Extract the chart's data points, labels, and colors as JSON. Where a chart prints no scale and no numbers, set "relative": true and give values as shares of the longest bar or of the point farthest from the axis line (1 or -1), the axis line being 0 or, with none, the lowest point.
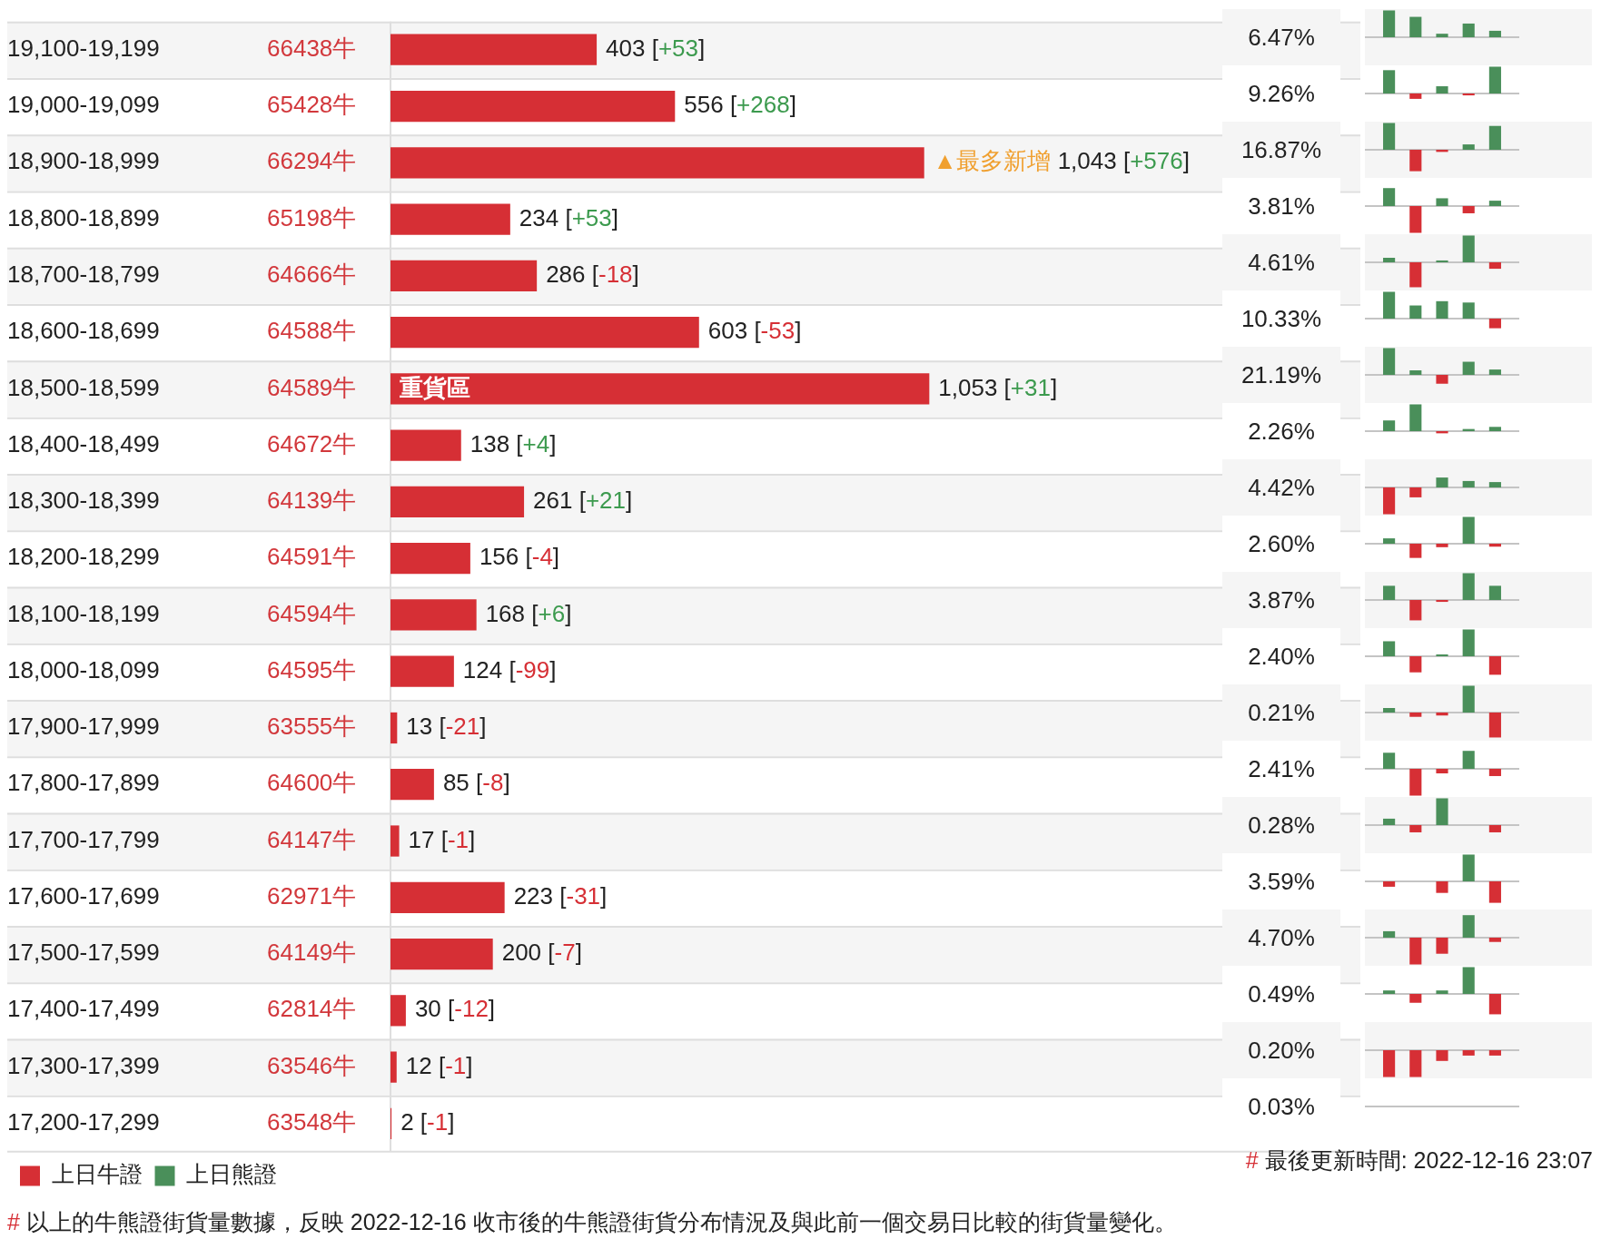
{
  "chart_data": [
    {
      "type": "bar",
      "orientation": "horizontal",
      "categories": [
        "19,100-19,199",
        "19,000-19,099",
        "18,900-18,999",
        "18,800-18,899",
        "18,700-18,799",
        "18,600-18,699",
        "18,500-18,599",
        "18,400-18,499",
        "18,300-18,399",
        "18,200-18,299",
        "18,100-18,199",
        "18,000-18,099",
        "17,900-17,999",
        "17,800-17,899",
        "17,700-17,799",
        "17,600-17,699",
        "17,500-17,599",
        "17,400-17,499",
        "17,300-17,399",
        "17,200-17,299"
      ],
      "y2_categories": [
        "66438牛",
        "65428牛",
        "66294牛",
        "65198牛",
        "64666牛",
        "64588牛",
        "64589牛",
        "64672牛",
        "64139牛",
        "64591牛",
        "64594牛",
        "64595牛",
        "63555牛",
        "64600牛",
        "64147牛",
        "62971牛",
        "64149牛",
        "62814牛",
        "63546牛",
        "63548牛"
      ],
      "series": [
        {
          "name": "上日牛證",
          "color": "#d62f35",
          "values": [
            403,
            556,
            1043,
            234,
            286,
            603,
            1053,
            138,
            261,
            156,
            168,
            124,
            13,
            85,
            17,
            223,
            200,
            30,
            12,
            2
          ],
          "value_labels": [
            "403 [+53]",
            "556 [+268]",
            "▲最多新增 1,043 [+576]",
            "234 [+53]",
            "286 [-18]",
            "603 [-53]",
            "1,053 [+31]",
            "138 [+4]",
            "261 [+21]",
            "156 [-4]",
            "168 [+6]",
            "124 [-99]",
            "13 [-21]",
            "85 [-8]",
            "17 [-1]",
            "223 [-31]",
            "200 [-7]",
            "30 [-12]",
            "12 [-1]",
            "2 [-1]"
          ]
        },
        {
          "name": "上日熊證",
          "color": "#4a8f5a",
          "values": [
            null,
            null,
            null,
            null,
            null,
            null,
            null,
            null,
            null,
            null,
            null,
            null,
            null,
            null,
            null,
            null,
            null,
            null,
            null,
            null
          ]
        }
      ],
      "annotations": [
        "重貨區",
        "# 最後更新時間: 2022-12-16 23:07",
        "# 以上的牛熊證街貨量數據，反映 2022-12-16 收市後的牛熊證街貨分布情況及與此前一個交易日比較的街貨量變化。"
      ],
      "legend": "bottom left"
    },
    {
      "type": "other",
      "annotations": [
        "6.47%",
        "9.26%",
        "16.87%",
        "3.81%",
        "4.61%",
        "10.33%",
        "21.19%",
        "2.26%",
        "4.42%",
        "2.60%",
        "3.87%",
        "2.40%",
        "0.21%",
        "2.41%",
        "0.28%",
        "3.59%",
        "4.70%",
        "0.49%",
        "0.20%",
        "0.03%"
      ]
    },
    {
      "type": "bar",
      "relative": true,
      "categories": [
        null,
        null,
        null,
        null,
        null
      ],
      "values": [
        1,
        0.76,
        0.13,
        0.51,
        0.24
      ],
      "colors": [
        "#4a8f5a",
        "#4a8f5a",
        "#4a8f5a",
        "#4a8f5a",
        "#4a8f5a"
      ]
    },
    {
      "type": "bar",
      "relative": true,
      "categories": [
        null,
        null,
        null,
        null,
        null
      ],
      "values": [
        0.87,
        -0.2,
        0.27,
        -0.07,
        1
      ],
      "colors": [
        "#4a8f5a",
        "#d62f35",
        "#4a8f5a",
        "#d62f35",
        "#4a8f5a"
      ]
    },
    {
      "type": "bar",
      "relative": true,
      "categories": [
        null,
        null,
        null,
        null,
        null
      ],
      "values": [
        1,
        -0.8,
        -0.08,
        0.2,
        0.89
      ],
      "colors": [
        "#4a8f5a",
        "#d62f35",
        "#d62f35",
        "#4a8f5a",
        "#4a8f5a"
      ]
    },
    {
      "type": "bar",
      "relative": true,
      "categories": [
        null,
        null,
        null,
        null,
        null
      ],
      "values": [
        0.67,
        -1,
        0.29,
        -0.27,
        0.2
      ],
      "colors": [
        "#4a8f5a",
        "#d62f35",
        "#4a8f5a",
        "#d62f35",
        "#4a8f5a"
      ]
    },
    {
      "type": "bar",
      "relative": true,
      "categories": [
        null,
        null,
        null,
        null,
        null
      ],
      "values": [
        0.17,
        -0.93,
        0.07,
        1,
        -0.24
      ],
      "colors": [
        "#4a8f5a",
        "#d62f35",
        "#4a8f5a",
        "#4a8f5a",
        "#d62f35"
      ]
    },
    {
      "type": "bar",
      "relative": true,
      "categories": [
        null,
        null,
        null,
        null,
        null
      ],
      "values": [
        1,
        0.49,
        0.65,
        0.6,
        -0.36
      ],
      "colors": [
        "#4a8f5a",
        "#4a8f5a",
        "#4a8f5a",
        "#4a8f5a",
        "#d62f35"
      ]
    },
    {
      "type": "bar",
      "relative": true,
      "categories": [
        null,
        null,
        null,
        null,
        null
      ],
      "values": [
        1,
        0.17,
        -0.33,
        0.49,
        0.2
      ],
      "colors": [
        "#4a8f5a",
        "#4a8f5a",
        "#d62f35",
        "#4a8f5a",
        "#4a8f5a"
      ]
    },
    {
      "type": "bar",
      "relative": true,
      "categories": [
        null,
        null,
        null,
        null,
        null
      ],
      "values": [
        0.4,
        1,
        -0.08,
        0.08,
        0.16
      ],
      "colors": [
        "#4a8f5a",
        "#4a8f5a",
        "#d62f35",
        "#4a8f5a",
        "#4a8f5a"
      ]
    },
    {
      "type": "bar",
      "relative": true,
      "categories": [
        null,
        null,
        null,
        null,
        null
      ],
      "values": [
        -1,
        -0.37,
        0.37,
        0.24,
        0.2
      ],
      "colors": [
        "#d62f35",
        "#d62f35",
        "#4a8f5a",
        "#4a8f5a",
        "#4a8f5a"
      ]
    },
    {
      "type": "bar",
      "relative": true,
      "categories": [
        null,
        null,
        null,
        null,
        null
      ],
      "values": [
        0.2,
        -0.53,
        -0.13,
        1,
        -0.11
      ],
      "colors": [
        "#4a8f5a",
        "#d62f35",
        "#d62f35",
        "#4a8f5a",
        "#d62f35"
      ]
    },
    {
      "type": "bar",
      "relative": true,
      "categories": [
        null,
        null,
        null,
        null,
        null
      ],
      "values": [
        0.53,
        -0.76,
        -0.07,
        1,
        0.53
      ],
      "colors": [
        "#4a8f5a",
        "#d62f35",
        "#d62f35",
        "#4a8f5a",
        "#4a8f5a"
      ]
    },
    {
      "type": "bar",
      "relative": true,
      "categories": [
        null,
        null,
        null,
        null,
        null
      ],
      "values": [
        0.56,
        -0.6,
        0.07,
        1,
        -0.69
      ],
      "colors": [
        "#4a8f5a",
        "#d62f35",
        "#4a8f5a",
        "#4a8f5a",
        "#d62f35"
      ]
    },
    {
      "type": "bar",
      "relative": true,
      "categories": [
        null,
        null,
        null,
        null,
        null
      ],
      "values": [
        0.17,
        -0.16,
        -0.11,
        1,
        -0.93
      ],
      "colors": [
        "#4a8f5a",
        "#d62f35",
        "#d62f35",
        "#4a8f5a",
        "#d62f35"
      ]
    },
    {
      "type": "bar",
      "relative": true,
      "categories": [
        null,
        null,
        null,
        null,
        null
      ],
      "values": [
        0.6,
        -1,
        -0.17,
        0.67,
        -0.27
      ],
      "colors": [
        "#4a8f5a",
        "#d62f35",
        "#d62f35",
        "#4a8f5a",
        "#d62f35"
      ]
    },
    {
      "type": "bar",
      "relative": true,
      "categories": [
        null,
        null,
        null,
        null,
        null
      ],
      "values": [
        0.24,
        -0.27,
        1,
        0,
        -0.27
      ],
      "colors": [
        "#4a8f5a",
        "#d62f35",
        "#4a8f5a",
        "#4a8f5a",
        "#d62f35"
      ]
    },
    {
      "type": "bar",
      "relative": true,
      "categories": [
        null,
        null,
        null,
        null,
        null
      ],
      "values": [
        -0.2,
        0,
        -0.43,
        1,
        -0.8
      ],
      "colors": [
        "#d62f35",
        "#d62f35",
        "#d62f35",
        "#4a8f5a",
        "#d62f35"
      ]
    },
    {
      "type": "bar",
      "relative": true,
      "categories": [
        null,
        null,
        null,
        null,
        null
      ],
      "values": [
        0.24,
        -1,
        -0.6,
        0.84,
        -0.16
      ],
      "colors": [
        "#4a8f5a",
        "#d62f35",
        "#d62f35",
        "#4a8f5a",
        "#d62f35"
      ]
    },
    {
      "type": "bar",
      "relative": true,
      "categories": [
        null,
        null,
        null,
        null,
        null
      ],
      "values": [
        0.13,
        -0.33,
        0.13,
        1,
        -0.76
      ],
      "colors": [
        "#4a8f5a",
        "#d62f35",
        "#4a8f5a",
        "#4a8f5a",
        "#d62f35"
      ]
    },
    {
      "type": "bar",
      "relative": true,
      "categories": [
        null,
        null,
        null,
        null,
        null
      ],
      "values": [
        -1,
        -1,
        -0.4,
        -0.2,
        -0.2
      ],
      "colors": [
        "#d62f35",
        "#d62f35",
        "#d62f35",
        "#d62f35",
        "#d62f35"
      ]
    },
    {
      "type": "other"
    }
  ]
}
